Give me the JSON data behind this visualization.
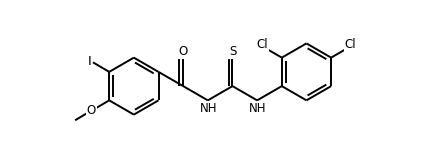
{
  "bg_color": "#ffffff",
  "line_color": "#000000",
  "line_width": 1.4,
  "font_size": 8.5,
  "figsize": [
    4.3,
    1.58
  ],
  "dpi": 100,
  "xlim": [
    -0.5,
    9.5
  ],
  "ylim": [
    -2.0,
    2.8
  ]
}
